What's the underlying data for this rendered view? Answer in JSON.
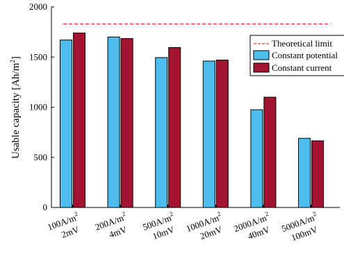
{
  "chart_data": {
    "type": "bar",
    "ylabel": "Usable capacity [Ah/m",
    "ylabel_sup": "2",
    "ylabel_tail": "]",
    "ylim": [
      0,
      2000
    ],
    "yticks": [
      {
        "value": 0,
        "label": "0"
      },
      {
        "value": 500,
        "label": "500"
      },
      {
        "value": 1000,
        "label": "1000"
      },
      {
        "value": 1500,
        "label": "1500"
      },
      {
        "value": 2000,
        "label": "2000"
      }
    ],
    "categories": [
      {
        "line1": "100A/m",
        "sup": "2",
        "line2": "2mV"
      },
      {
        "line1": "200A/m",
        "sup": "2",
        "line2": "4mV"
      },
      {
        "line1": "500A/m",
        "sup": "2",
        "line2": "10mV"
      },
      {
        "line1": "1000A/m",
        "sup": "2",
        "line2": "20mV"
      },
      {
        "line1": "2000A/m",
        "sup": "2",
        "line2": "40mV"
      },
      {
        "line1": "5000A/m",
        "sup": "2",
        "line2": "100mV"
      }
    ],
    "series": [
      {
        "name": "Constant potential",
        "color": "#4dbeee",
        "values": [
          1670,
          1700,
          1495,
          1460,
          975,
          690
        ]
      },
      {
        "name": "Constant current",
        "color": "#a2142f",
        "values": [
          1740,
          1685,
          1595,
          1470,
          1100,
          665
        ]
      }
    ],
    "reference_line": {
      "name": "Theoretical limit",
      "value": 1830,
      "color": "#ff0000",
      "style": "dashed"
    },
    "legend_position": "top-right",
    "grid": false
  }
}
